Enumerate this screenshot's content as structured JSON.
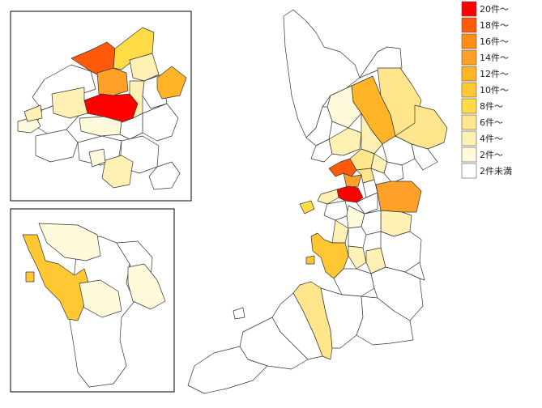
{
  "legend": [
    {
      "label": "20件～",
      "color": "#ff0000"
    },
    {
      "label": "18件～",
      "color": "#ff5a0a"
    },
    {
      "label": "16件～",
      "color": "#ff8c14"
    },
    {
      "label": "14件～",
      "color": "#ffa028"
    },
    {
      "label": "12件～",
      "color": "#ffb428"
    },
    {
      "label": "10件～",
      "color": "#ffc832"
    },
    {
      "label": "8件～",
      "color": "#ffdc46"
    },
    {
      "label": "6件～",
      "color": "#ffe68c"
    },
    {
      "label": "4件～",
      "color": "#fff0b4"
    },
    {
      "label": "2件～",
      "color": "#fffadc"
    },
    {
      "label": "2件未満",
      "color": "#ffffff"
    }
  ],
  "region_levels": {
    "insets": {
      "osaka_city_north_upper": "18件～",
      "osaka_city_north_upper_right": "10件～",
      "osaka_city_center": "16件～",
      "osaka_city_east": "12件～",
      "osaka_city_core": "20件～",
      "osaka_city_misc": "4件～",
      "sakai_west": "10件～",
      "sakai_center": "4件～",
      "sakai_east": "4件～"
    },
    "main": {
      "hokusetsu_a": "12件～",
      "hokusetsu_b": "6件～",
      "hokusetsu_c": "6件～",
      "hokusetsu_d": "4件～",
      "city_core": "20件～",
      "city_north": "18件～",
      "city_ring": "12件～",
      "kawachi_east": "14件～",
      "kawachi_south": "6件～",
      "bay_coast": "10件～",
      "senshu_mid": "6件～",
      "minor_light": "4件～",
      "minor_pale": "2件～"
    }
  }
}
